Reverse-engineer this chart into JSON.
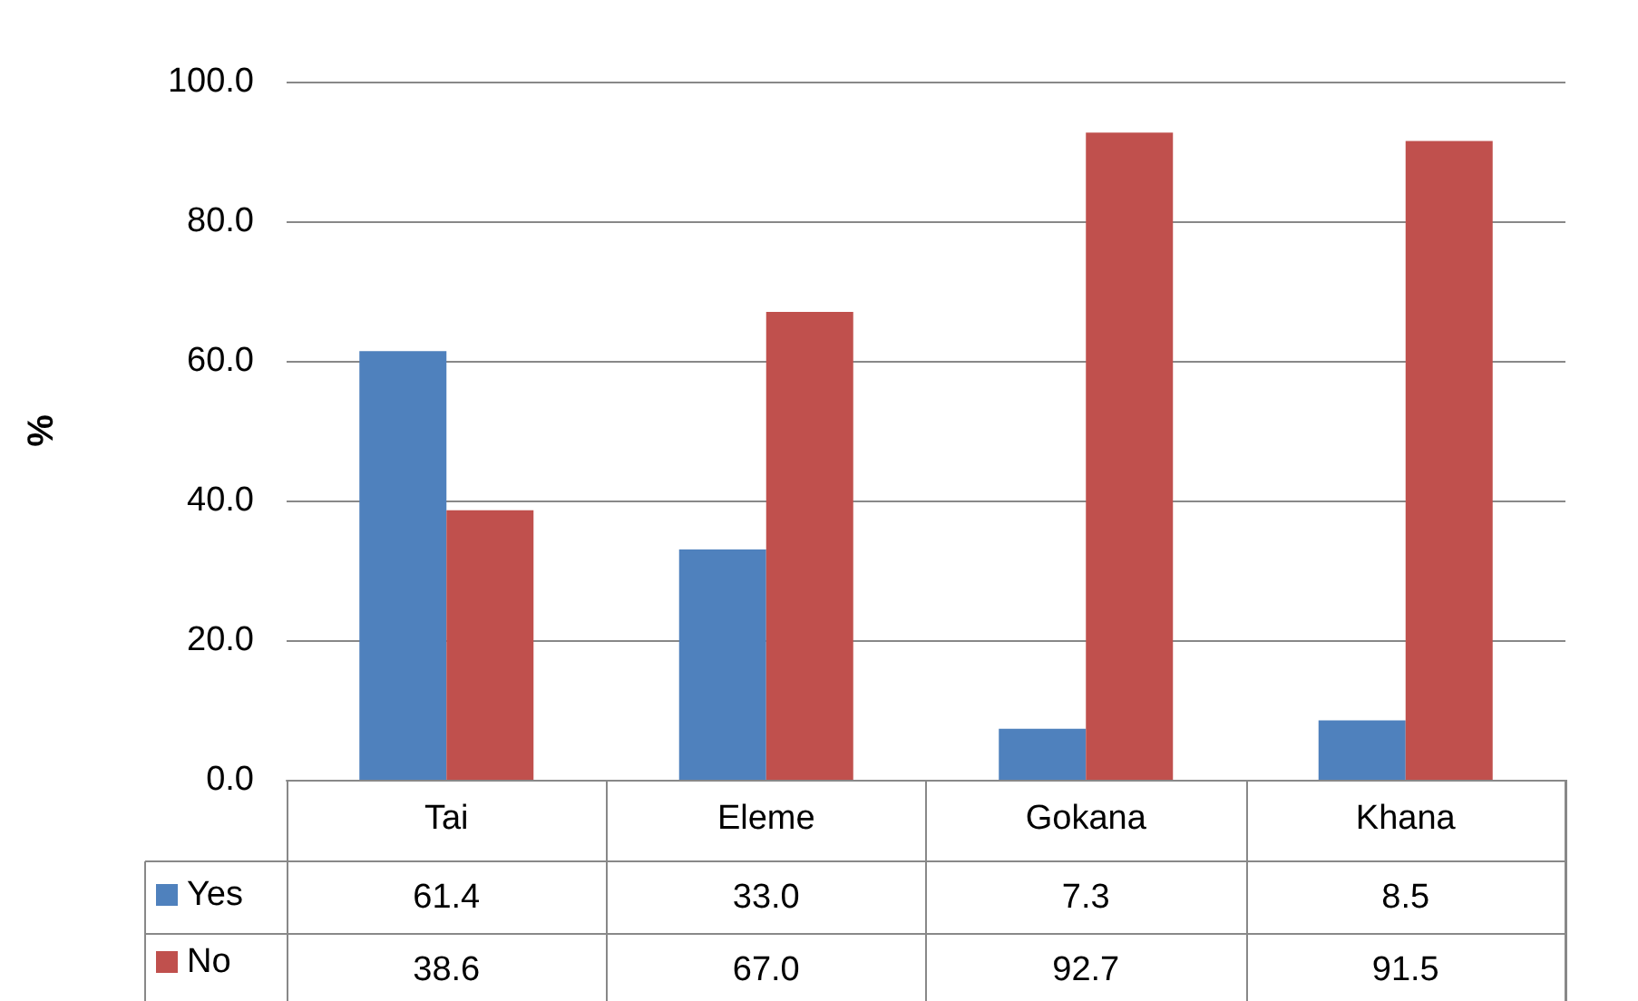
{
  "chart_data": {
    "type": "bar",
    "ylabel": "%",
    "categories": [
      "Tai",
      "Eleme",
      "Gokana",
      "Khana"
    ],
    "series": [
      {
        "name": "Yes",
        "color": "#4f81bd",
        "values": [
          61.4,
          33.0,
          7.3,
          8.5
        ],
        "value_labels": [
          "61.4",
          "33.0",
          "7.3",
          "8.5"
        ]
      },
      {
        "name": "No",
        "color": "#c0504d",
        "values": [
          38.6,
          67.0,
          92.7,
          91.5
        ],
        "value_labels": [
          "38.6",
          "67.0",
          "92.7",
          "91.5"
        ]
      }
    ],
    "ylim": [
      0,
      100
    ],
    "yticks": [
      {
        "value": 0,
        "label": "0.0"
      },
      {
        "value": 20,
        "label": "20.0"
      },
      {
        "value": 40,
        "label": "40.0"
      },
      {
        "value": 60,
        "label": "60.0"
      },
      {
        "value": 80,
        "label": "80.0"
      },
      {
        "value": 100,
        "label": "100.0"
      }
    ],
    "grid": "y",
    "legend": "bottom left"
  }
}
